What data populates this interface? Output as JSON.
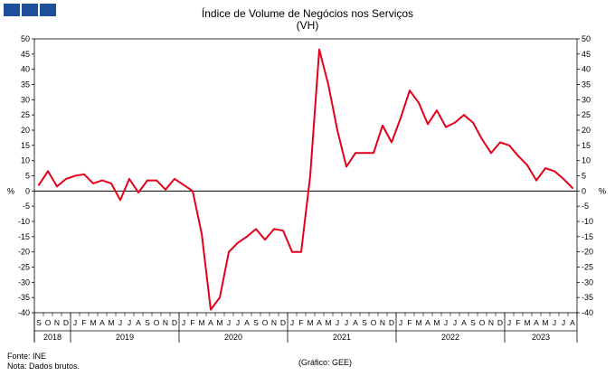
{
  "logo": {
    "color": "#1f4e9c",
    "icon": "gee-logo-squares"
  },
  "header": {
    "title": "Índice de Volume de Negócios nos Serviços",
    "subtitle": "(VH)"
  },
  "footer": {
    "source": "Fonte: INE",
    "note": "Nota: Dados brutos.",
    "credit": "(Gráfico: GEE)"
  },
  "chart_data": {
    "type": "line",
    "title": "Índice de Volume de Negócios nos Serviços",
    "subtitle": "(VH)",
    "ylabel_left": "%",
    "ylabel_right": "%",
    "ylim": [
      -40,
      50
    ],
    "yticks": [
      50,
      45,
      40,
      35,
      30,
      25,
      20,
      15,
      10,
      5,
      0,
      -5,
      -10,
      -15,
      -20,
      -25,
      -30,
      -35,
      -40
    ],
    "grid": false,
    "legend": "none",
    "line_color": "#e3001b",
    "month_labels": [
      "S",
      "O",
      "N",
      "D",
      "J",
      "F",
      "M",
      "A",
      "M",
      "J",
      "J",
      "A",
      "S",
      "O",
      "N",
      "D",
      "J",
      "F",
      "M",
      "A",
      "M",
      "J",
      "J",
      "A",
      "S",
      "O",
      "N",
      "D",
      "J",
      "F",
      "M",
      "A",
      "M",
      "J",
      "J",
      "A",
      "S",
      "O",
      "N",
      "D",
      "J",
      "F",
      "M",
      "A",
      "M",
      "J",
      "J",
      "A",
      "S",
      "O",
      "N",
      "D",
      "J",
      "F",
      "M",
      "A",
      "M",
      "J",
      "J",
      "A"
    ],
    "years": [
      {
        "label": "2018",
        "start": 0,
        "count": 4
      },
      {
        "label": "2019",
        "start": 4,
        "count": 12
      },
      {
        "label": "2020",
        "start": 16,
        "count": 12
      },
      {
        "label": "2021",
        "start": 28,
        "count": 12
      },
      {
        "label": "2022",
        "start": 40,
        "count": 12
      },
      {
        "label": "2023",
        "start": 52,
        "count": 8
      }
    ],
    "series": [
      {
        "values": [
          2,
          6.5,
          1.5,
          4,
          5,
          5.5,
          2.5,
          3.5,
          2.5,
          -3,
          4,
          -0.5,
          3.5,
          3.5,
          0.5,
          4,
          2,
          0,
          -14,
          -39,
          -35,
          -20,
          -17,
          -15,
          -12.5,
          -16,
          -12.5,
          -13,
          -20,
          -20,
          5,
          46.5,
          35,
          20,
          8,
          12.5,
          12.5,
          12.5,
          21.5,
          16,
          24,
          33,
          29,
          22,
          26.5,
          21,
          22.5,
          25,
          22.5,
          17,
          12.5,
          16,
          15,
          11.5,
          8.5,
          3.5,
          7.5,
          6.5,
          4,
          1
        ]
      }
    ]
  }
}
